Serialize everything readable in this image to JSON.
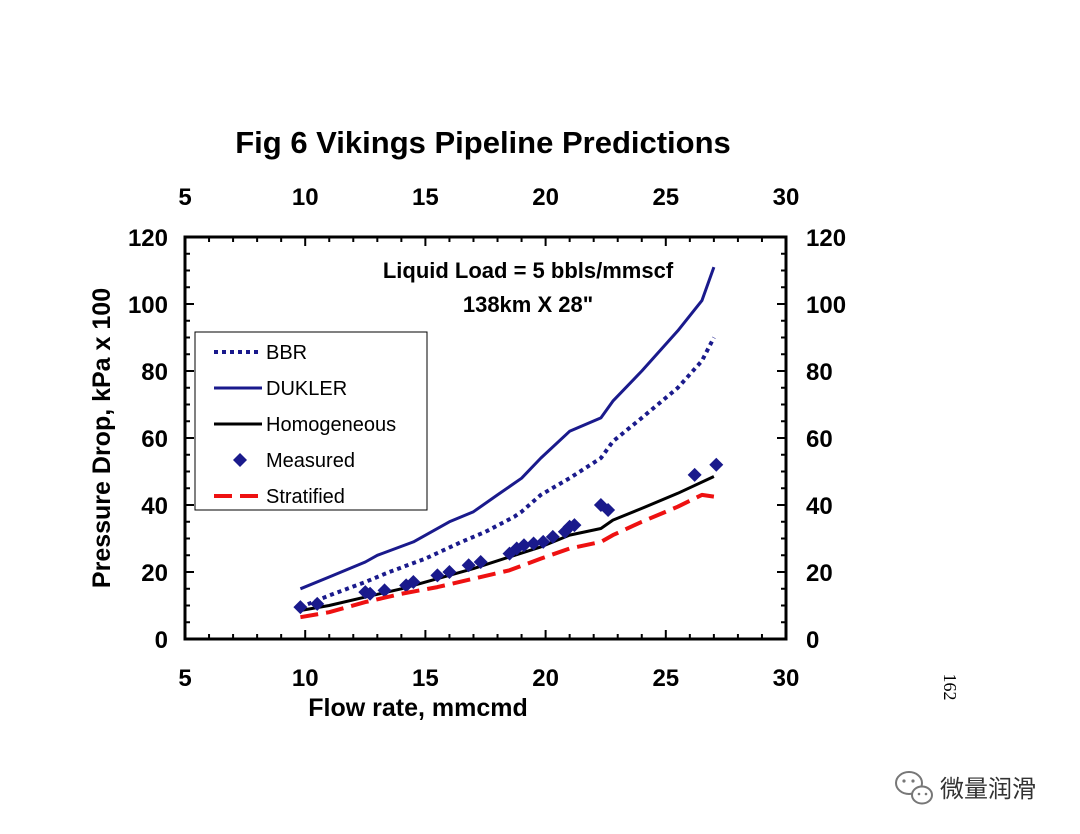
{
  "chart_data": {
    "type": "line",
    "title": "Fig 6 Vikings Pipeline Predictions",
    "xlabel": "Flow rate, mmcmd",
    "ylabel": "Pressure Drop, kPa x 100",
    "xlim": [
      5,
      30
    ],
    "ylim": [
      0,
      120
    ],
    "x_ticks": [
      5,
      10,
      15,
      20,
      25,
      30
    ],
    "y_ticks": [
      0,
      20,
      40,
      60,
      80,
      100,
      120
    ],
    "annotations": [
      "Liquid Load = 5 bbls/mmscf",
      "138km X 28\""
    ],
    "legend_position": "middle-left",
    "grid": false,
    "series": [
      {
        "name": "BBR",
        "style": "dotted",
        "color": "#1a1a8c",
        "x": [
          9.8,
          11,
          12.5,
          13.5,
          15,
          16.5,
          17.5,
          18.7,
          19,
          19.8,
          21,
          22.3,
          22.8,
          24,
          25.5,
          26.5,
          27
        ],
        "y": [
          9.5,
          13,
          17,
          20,
          24,
          29,
          32,
          36.5,
          38,
          43,
          48,
          54,
          59,
          66,
          75,
          83,
          90
        ]
      },
      {
        "name": "DUKLER",
        "style": "solid",
        "color": "#1a1a8c",
        "x": [
          9.8,
          11,
          12.5,
          13,
          14.5,
          16,
          17,
          18,
          19,
          19.8,
          21,
          22.3,
          22.8,
          24,
          25.5,
          26.5,
          27
        ],
        "y": [
          15,
          18.5,
          23,
          25,
          29,
          35,
          38,
          43,
          48,
          54,
          62,
          66,
          71,
          80,
          92,
          101,
          111
        ]
      },
      {
        "name": "Homogeneous",
        "style": "solid",
        "color": "#000000",
        "x": [
          9.8,
          11,
          12.5,
          14,
          15.5,
          17,
          18.5,
          19.8,
          21,
          22.3,
          22.8,
          24,
          25.5,
          27
        ],
        "y": [
          8.5,
          10,
          12.5,
          15,
          18,
          21,
          24.5,
          27.5,
          31,
          33,
          35.5,
          39,
          43.5,
          48.5
        ]
      },
      {
        "name": "Measured",
        "style": "marker",
        "color": "#1a1a8c",
        "x": [
          9.8,
          10.5,
          12.5,
          12.7,
          13.3,
          14.2,
          14.5,
          15.5,
          16,
          16.8,
          17.3,
          18.5,
          18.8,
          19.1,
          19.5,
          19.9,
          20.3,
          20.8,
          21.0,
          21.2,
          22.3,
          22.6,
          26.2,
          27.1
        ],
        "y": [
          9.5,
          10.5,
          14,
          13.5,
          14.5,
          16,
          17,
          19,
          20,
          22,
          23,
          25.5,
          27,
          28,
          28.5,
          29,
          30.5,
          32,
          33.5,
          34,
          40,
          38.5,
          49,
          52
        ]
      },
      {
        "name": "Stratified",
        "style": "dashed",
        "color": "#ee1111",
        "x": [
          9.8,
          11,
          12.5,
          14,
          15.5,
          17,
          18.5,
          19.8,
          21,
          22.3,
          22.8,
          24,
          25.5,
          26.5,
          27
        ],
        "y": [
          6.5,
          8,
          11,
          13.5,
          15.5,
          18,
          20.5,
          24,
          27,
          29,
          31,
          35,
          39.5,
          43,
          42.5
        ]
      }
    ]
  },
  "page": {
    "page_number": "162",
    "watermark_text": "微量润滑",
    "watermark_icon": "wechat-icon"
  }
}
